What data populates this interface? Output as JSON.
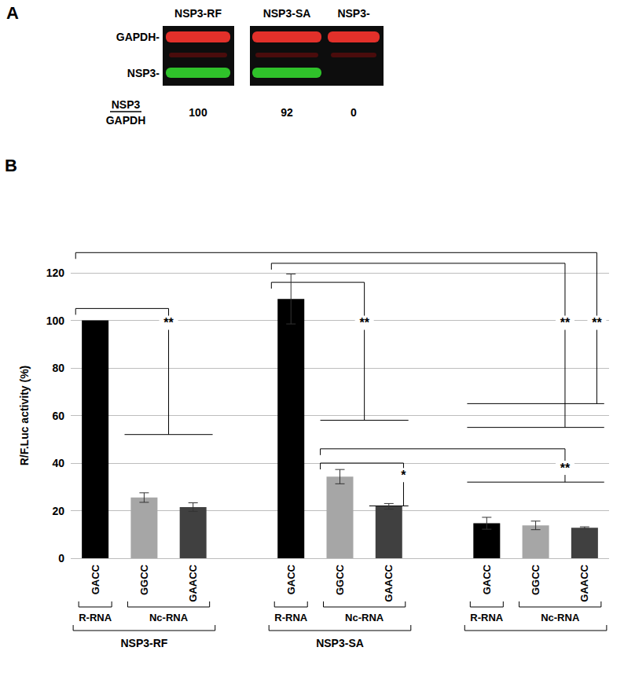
{
  "panel_a": {
    "label": "A",
    "lanes": [
      "NSP3-RF",
      "NSP3-SA",
      "NSP3-"
    ],
    "bands": [
      "GAPDH-",
      "NSP3-"
    ],
    "ratio_label": {
      "numerator": "NSP3",
      "denominator": "GAPDH"
    },
    "ratios": [
      100,
      92,
      0
    ]
  },
  "chart_data": {
    "type": "bar",
    "panel_label": "B",
    "ylabel": "R/F.Luc activity (%)",
    "categories": [
      "GACC",
      "GGCC",
      "GAACC",
      null,
      "GACC",
      "GGCC",
      "GAACC",
      null,
      "GACC",
      "GGCC",
      "GAACC"
    ],
    "values": [
      100,
      25.5,
      21.5,
      null,
      109,
      34.3,
      21.8,
      null,
      14.7,
      13.8,
      12.8
    ],
    "errors": [
      null,
      2.0,
      1.8,
      null,
      10.5,
      3.0,
      1.2,
      null,
      2.5,
      1.8,
      0.4
    ],
    "colors": [
      "#000000",
      "#a6a6a6",
      "#404040",
      null,
      "#000000",
      "#a6a6a6",
      "#404040",
      null,
      "#000000",
      "#a6a6a6",
      "#404040"
    ],
    "ylim": [
      0,
      120
    ],
    "yticks": [
      0,
      20,
      40,
      60,
      80,
      100,
      120
    ],
    "grid": true,
    "subgroups": [
      {
        "label": "R-RNA",
        "start": 0,
        "end": 0
      },
      {
        "label": "Nc-RNA",
        "start": 1,
        "end": 2
      },
      {
        "label": "R-RNA",
        "start": 4,
        "end": 4
      },
      {
        "label": "Nc-RNA",
        "start": 5,
        "end": 6
      },
      {
        "label": "R-RNA",
        "start": 8,
        "end": 8
      },
      {
        "label": "Nc-RNA",
        "start": 9,
        "end": 10
      }
    ],
    "groups": [
      {
        "label": "NSP3-RF",
        "start": 0,
        "end": 2
      },
      {
        "label": "NSP3-SA",
        "start": 4,
        "end": 6
      },
      {
        "label": null,
        "start": 8,
        "end": 10
      }
    ],
    "significance": [
      {
        "from": 0,
        "to": [
          1,
          2
        ],
        "label": "**"
      },
      {
        "from": 4,
        "to": [
          5,
          6
        ],
        "label": "**"
      },
      {
        "from": 4,
        "to": [
          8,
          9,
          10
        ],
        "label": "**"
      },
      {
        "from": 0,
        "to": [
          8,
          9,
          10
        ],
        "label": "**"
      },
      {
        "from": 5,
        "to": [
          6
        ],
        "label": "*"
      },
      {
        "from": 5,
        "to": [
          8,
          9,
          10
        ],
        "label": "**"
      }
    ]
  }
}
